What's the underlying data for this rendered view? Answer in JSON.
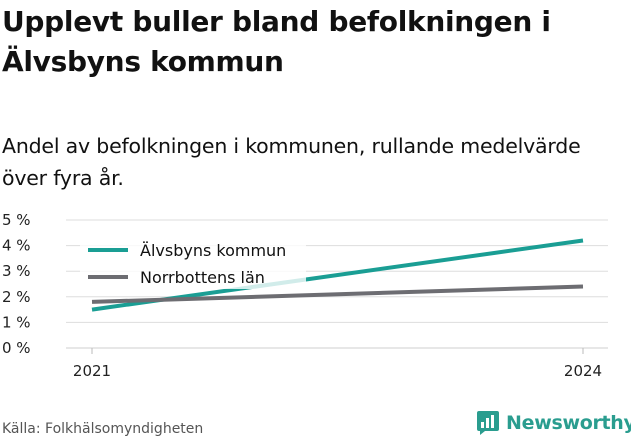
{
  "header": {
    "title": "Upplevt buller bland befolkningen i Älvsbyns kommun",
    "subtitle": "Andel av befolkningen i kommunen, rullande medelvärde över fyra år."
  },
  "footer": {
    "source": "Källa: Folkhälsomyndigheten",
    "brand": "Newsworthy"
  },
  "colors": {
    "series_1": "#1a9e94",
    "series_2": "#6d6d72",
    "grid": "#dddddd",
    "brand": "#2a9d8f"
  },
  "chart_data": {
    "type": "line",
    "x": [
      2021,
      2024
    ],
    "x_tick_labels": [
      "2021",
      "2024"
    ],
    "ylim": [
      0,
      5
    ],
    "y_ticks": [
      0,
      1,
      2,
      3,
      4,
      5
    ],
    "y_tick_labels": [
      "0 %",
      "1 %",
      "2 %",
      "3 %",
      "4 %",
      "5 %"
    ],
    "grid": true,
    "legend_position": "top-left",
    "series": [
      {
        "name": "Älvsbyns kommun",
        "values": [
          1.5,
          4.2
        ]
      },
      {
        "name": "Norrbottens län",
        "values": [
          1.8,
          2.4
        ]
      }
    ]
  }
}
